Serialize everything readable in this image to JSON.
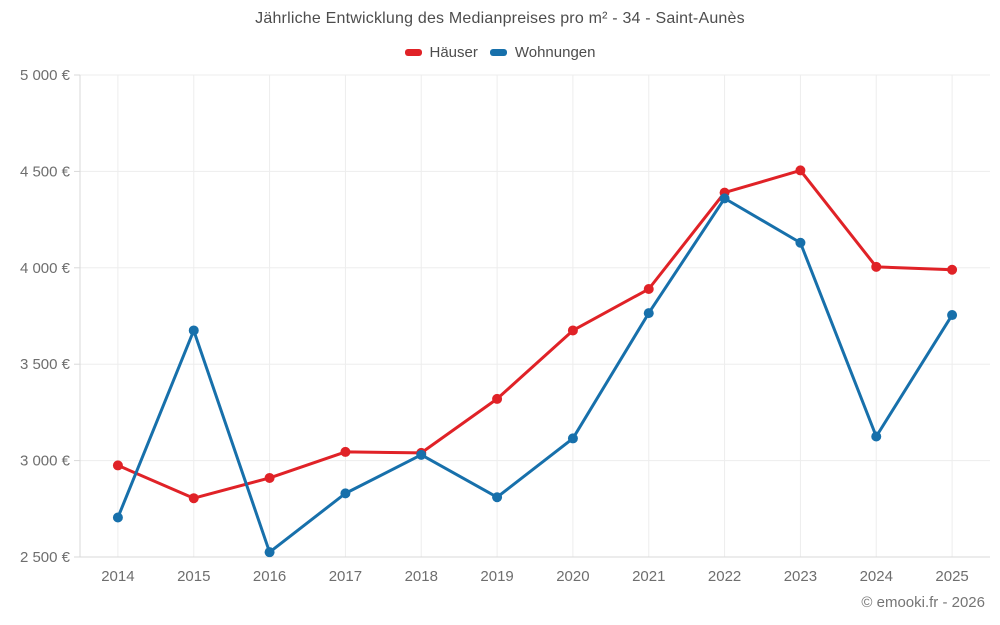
{
  "chart_data": {
    "type": "line",
    "title": "Jährliche Entwicklung des Medianpreises pro m² - 34 - Saint-Aunès",
    "categories": [
      "2014",
      "2015",
      "2016",
      "2017",
      "2018",
      "2019",
      "2020",
      "2021",
      "2022",
      "2023",
      "2024",
      "2025"
    ],
    "series": [
      {
        "name": "Häuser",
        "color": "#e02227",
        "values": [
          2975,
          2805,
          2910,
          3045,
          3040,
          3320,
          3675,
          3890,
          4390,
          4505,
          4005,
          3990
        ]
      },
      {
        "name": "Wohnungen",
        "color": "#1770ab",
        "values": [
          2705,
          3675,
          2525,
          2830,
          3030,
          2810,
          3115,
          3765,
          4360,
          4130,
          3125,
          3755
        ]
      }
    ],
    "xlabel": "",
    "ylabel": "",
    "ylim": [
      2500,
      5000
    ],
    "y_ticks": [
      2500,
      3000,
      3500,
      4000,
      4500,
      5000
    ],
    "y_tick_labels": [
      "2 500 €",
      "3 000 €",
      "3 500 €",
      "4 000 €",
      "4 500 €",
      "5 000 €"
    ],
    "grid": true,
    "legend_position": "top"
  },
  "footer": {
    "credit": "© emooki.fr - 2026"
  },
  "theme": {
    "background": "#ffffff",
    "grid_color": "#ededed",
    "axis_color": "#d9d9d9",
    "title_color": "#4d4d4d",
    "axis_label_color": "#6e6e6e",
    "footer_color": "#757575"
  }
}
